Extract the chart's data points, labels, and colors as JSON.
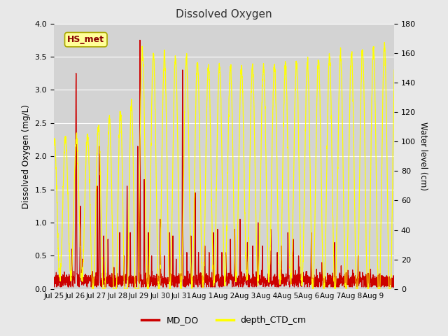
{
  "title": "Dissolved Oxygen",
  "ylabel_left": "Dissolved Oxygen (mg/L)",
  "ylabel_right": "Water level (cm)",
  "ylim_left": [
    0.0,
    4.0
  ],
  "ylim_right": [
    0,
    180
  ],
  "fig_bg_color": "#e8e8e8",
  "plot_bg_color": "#d3d3d3",
  "line_color_do": "#cc0000",
  "line_color_depth": "#ffff00",
  "legend_do": "MD_DO",
  "legend_depth": "depth_CTD_cm",
  "annotation_text": "HS_met",
  "annotation_bg": "#ffff99",
  "annotation_border": "#aaa800",
  "annotation_text_color": "#880000",
  "xtick_labels": [
    "Jul 25",
    "Jul 26",
    "Jul 27",
    "Jul 28",
    "Jul 29",
    "Jul 30",
    "Jul 31",
    "Aug 1",
    "Aug 2",
    "Aug 3",
    "Aug 4",
    "Aug 5",
    "Aug 6",
    "Aug 7",
    "Aug 8",
    "Aug 9"
  ],
  "yticks_left": [
    0.0,
    0.5,
    1.0,
    1.5,
    2.0,
    2.5,
    3.0,
    3.5,
    4.0
  ],
  "yticks_right": [
    0,
    20,
    40,
    60,
    80,
    100,
    120,
    140,
    160,
    180
  ],
  "grid_color": "#c0c0c0",
  "title_fontsize": 11,
  "axis_label_fontsize": 8.5,
  "tick_fontsize": 8
}
